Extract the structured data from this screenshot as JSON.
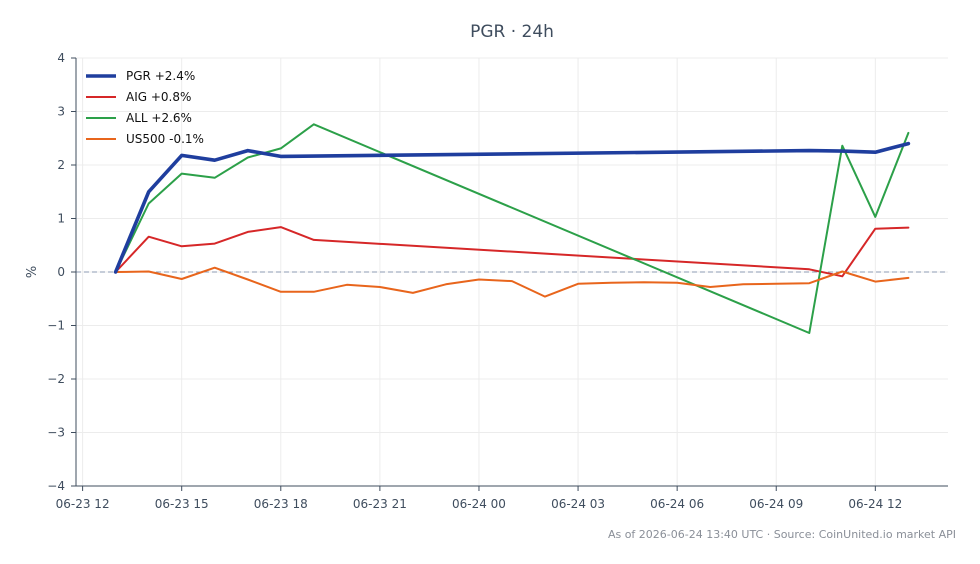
{
  "chart_data": {
    "type": "line",
    "title": "PGR · 24h",
    "ylabel": "%",
    "ylim": [
      -4,
      4
    ],
    "y_ticks": [
      4,
      3,
      2,
      1,
      0,
      -1,
      -2,
      -3,
      -4
    ],
    "y_tick_labels": [
      "4",
      "3",
      "2",
      "1",
      "0",
      "−1",
      "−2",
      "−3",
      "−4"
    ],
    "x_ticks": [
      12,
      15,
      18,
      21,
      24,
      27,
      30,
      33,
      36
    ],
    "x_tick_labels": [
      "06-23 12",
      "06-23 15",
      "06-23 18",
      "06-23 21",
      "06-24 00",
      "06-24 03",
      "06-24 06",
      "06-24 09",
      "06-24 12"
    ],
    "xlim": [
      11.8,
      38.2
    ],
    "x_unit": "hours from 06-23 00:00",
    "reference_line": 0,
    "grid": true,
    "legend_position": "top-left",
    "series": [
      {
        "name": "PGR +2.4%",
        "color": "#1f3e9e",
        "emphasis": true,
        "points": [
          [
            13,
            0
          ],
          [
            14,
            1.5
          ],
          [
            15,
            2.18
          ],
          [
            16,
            2.09
          ],
          [
            17,
            2.27
          ],
          [
            18,
            2.16
          ],
          [
            34,
            2.27
          ],
          [
            35,
            2.26
          ],
          [
            36,
            2.24
          ],
          [
            37,
            2.4
          ]
        ]
      },
      {
        "name": "AIG +0.8%",
        "color": "#d62728",
        "emphasis": false,
        "points": [
          [
            13,
            0
          ],
          [
            14,
            0.66
          ],
          [
            15,
            0.48
          ],
          [
            16,
            0.53
          ],
          [
            17,
            0.75
          ],
          [
            18,
            0.84
          ],
          [
            19,
            0.6
          ],
          [
            34,
            0.05
          ],
          [
            35,
            -0.08
          ],
          [
            36,
            0.81
          ],
          [
            37,
            0.83
          ]
        ]
      },
      {
        "name": "ALL +2.6%",
        "color": "#2ca049",
        "emphasis": false,
        "points": [
          [
            13,
            0
          ],
          [
            14,
            1.28
          ],
          [
            15,
            1.84
          ],
          [
            16,
            1.76
          ],
          [
            17,
            2.14
          ],
          [
            18,
            2.31
          ],
          [
            19,
            2.76
          ],
          [
            34,
            -1.14
          ],
          [
            35,
            2.36
          ],
          [
            36,
            1.03
          ],
          [
            37,
            2.6
          ]
        ]
      },
      {
        "name": "US500 -0.1%",
        "color": "#e8651c",
        "emphasis": false,
        "points": [
          [
            13,
            0
          ],
          [
            14,
            0.01
          ],
          [
            15,
            -0.13
          ],
          [
            16,
            0.08
          ],
          [
            17,
            -0.14
          ],
          [
            18,
            -0.37
          ],
          [
            19,
            -0.37
          ],
          [
            20,
            -0.24
          ],
          [
            21,
            -0.28
          ],
          [
            22,
            -0.39
          ],
          [
            23,
            -0.23
          ],
          [
            24,
            -0.14
          ],
          [
            25,
            -0.17
          ],
          [
            26,
            -0.46
          ],
          [
            27,
            -0.22
          ],
          [
            28,
            -0.2
          ],
          [
            29,
            -0.19
          ],
          [
            30,
            -0.2
          ],
          [
            31,
            -0.28
          ],
          [
            32,
            -0.23
          ],
          [
            33,
            -0.22
          ],
          [
            34,
            -0.21
          ],
          [
            35,
            0.01
          ],
          [
            36,
            -0.18
          ],
          [
            37,
            -0.11
          ]
        ]
      }
    ]
  },
  "footer": "As of 2026-06-24 13:40 UTC · Source: CoinUnited.io market API"
}
